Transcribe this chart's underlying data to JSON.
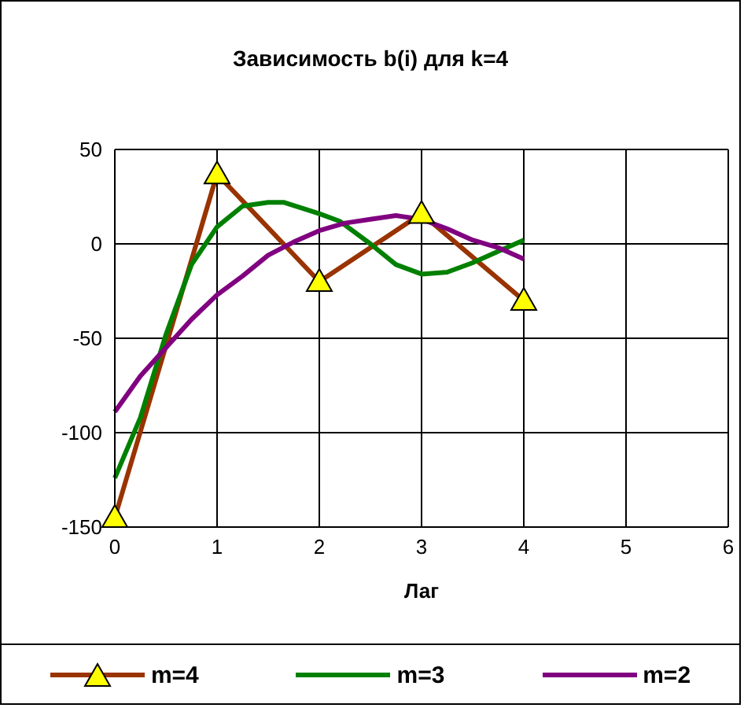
{
  "chart_data": {
    "type": "line",
    "title": "Зависимость b(i) для k=4",
    "xlabel": "Лаг",
    "xlim": [
      0,
      6
    ],
    "xticks": [
      0,
      1,
      2,
      3,
      4,
      5,
      6
    ],
    "ylim": [
      -150,
      50
    ],
    "yticks": [
      -150,
      -100,
      -50,
      0,
      50
    ],
    "grid": true,
    "legend": "bottom",
    "series": [
      {
        "name": "m=4",
        "color": "#993300",
        "marker": "triangle",
        "x": [
          0,
          1,
          2,
          3,
          4
        ],
        "values": [
          -145,
          37,
          -20,
          16,
          -30
        ]
      },
      {
        "name": "m=3",
        "color": "#008000",
        "marker": "none",
        "x": [
          0,
          0.25,
          0.5,
          0.75,
          1,
          1.25,
          1.5,
          1.65,
          2,
          2.2,
          2.5,
          2.75,
          3,
          3.25,
          3.5,
          3.75,
          4
        ],
        "values": [
          -124,
          -92,
          -48,
          -11,
          9,
          20,
          22,
          22,
          16,
          12,
          0,
          -11,
          -16,
          -15,
          -10,
          -4,
          2
        ]
      },
      {
        "name": "m=2",
        "color": "#800080",
        "marker": "none",
        "x": [
          0,
          0.25,
          0.5,
          0.75,
          1,
          1.25,
          1.5,
          1.75,
          2,
          2.25,
          2.5,
          2.75,
          3,
          3.25,
          3.5,
          3.75,
          4
        ],
        "values": [
          -89,
          -70,
          -55,
          -40,
          -27,
          -17,
          -6,
          1,
          7,
          11,
          13,
          15,
          13,
          8,
          2,
          -2,
          -8
        ]
      }
    ]
  }
}
